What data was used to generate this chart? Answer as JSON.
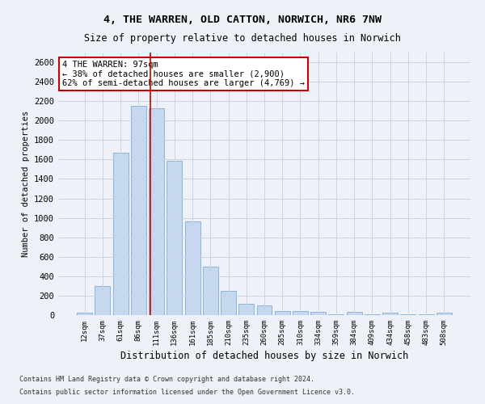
{
  "title": "4, THE WARREN, OLD CATTON, NORWICH, NR6 7NW",
  "subtitle": "Size of property relative to detached houses in Norwich",
  "xlabel": "Distribution of detached houses by size in Norwich",
  "ylabel": "Number of detached properties",
  "categories": [
    "12sqm",
    "37sqm",
    "61sqm",
    "86sqm",
    "111sqm",
    "136sqm",
    "161sqm",
    "185sqm",
    "210sqm",
    "235sqm",
    "260sqm",
    "285sqm",
    "310sqm",
    "334sqm",
    "359sqm",
    "384sqm",
    "409sqm",
    "434sqm",
    "458sqm",
    "483sqm",
    "508sqm"
  ],
  "values": [
    25,
    300,
    1670,
    2150,
    2130,
    1590,
    960,
    500,
    250,
    120,
    100,
    45,
    45,
    30,
    5,
    30,
    5,
    25,
    5,
    5,
    25
  ],
  "bar_color": "#c5d8f0",
  "bar_edge_color": "#8ab4d8",
  "grid_color": "#c8d4e8",
  "vline_x": 3.65,
  "vline_color": "#cc0000",
  "annotation_text": "4 THE WARREN: 97sqm\n← 38% of detached houses are smaller (2,900)\n62% of semi-detached houses are larger (4,769) →",
  "annotation_box_color": "#ffffff",
  "annotation_box_edge_color": "#cc0000",
  "ylim": [
    0,
    2700
  ],
  "yticks": [
    0,
    200,
    400,
    600,
    800,
    1000,
    1200,
    1400,
    1600,
    1800,
    2000,
    2200,
    2400,
    2600
  ],
  "footer_line1": "Contains HM Land Registry data © Crown copyright and database right 2024.",
  "footer_line2": "Contains public sector information licensed under the Open Government Licence v3.0.",
  "bg_color": "#eef2f8"
}
